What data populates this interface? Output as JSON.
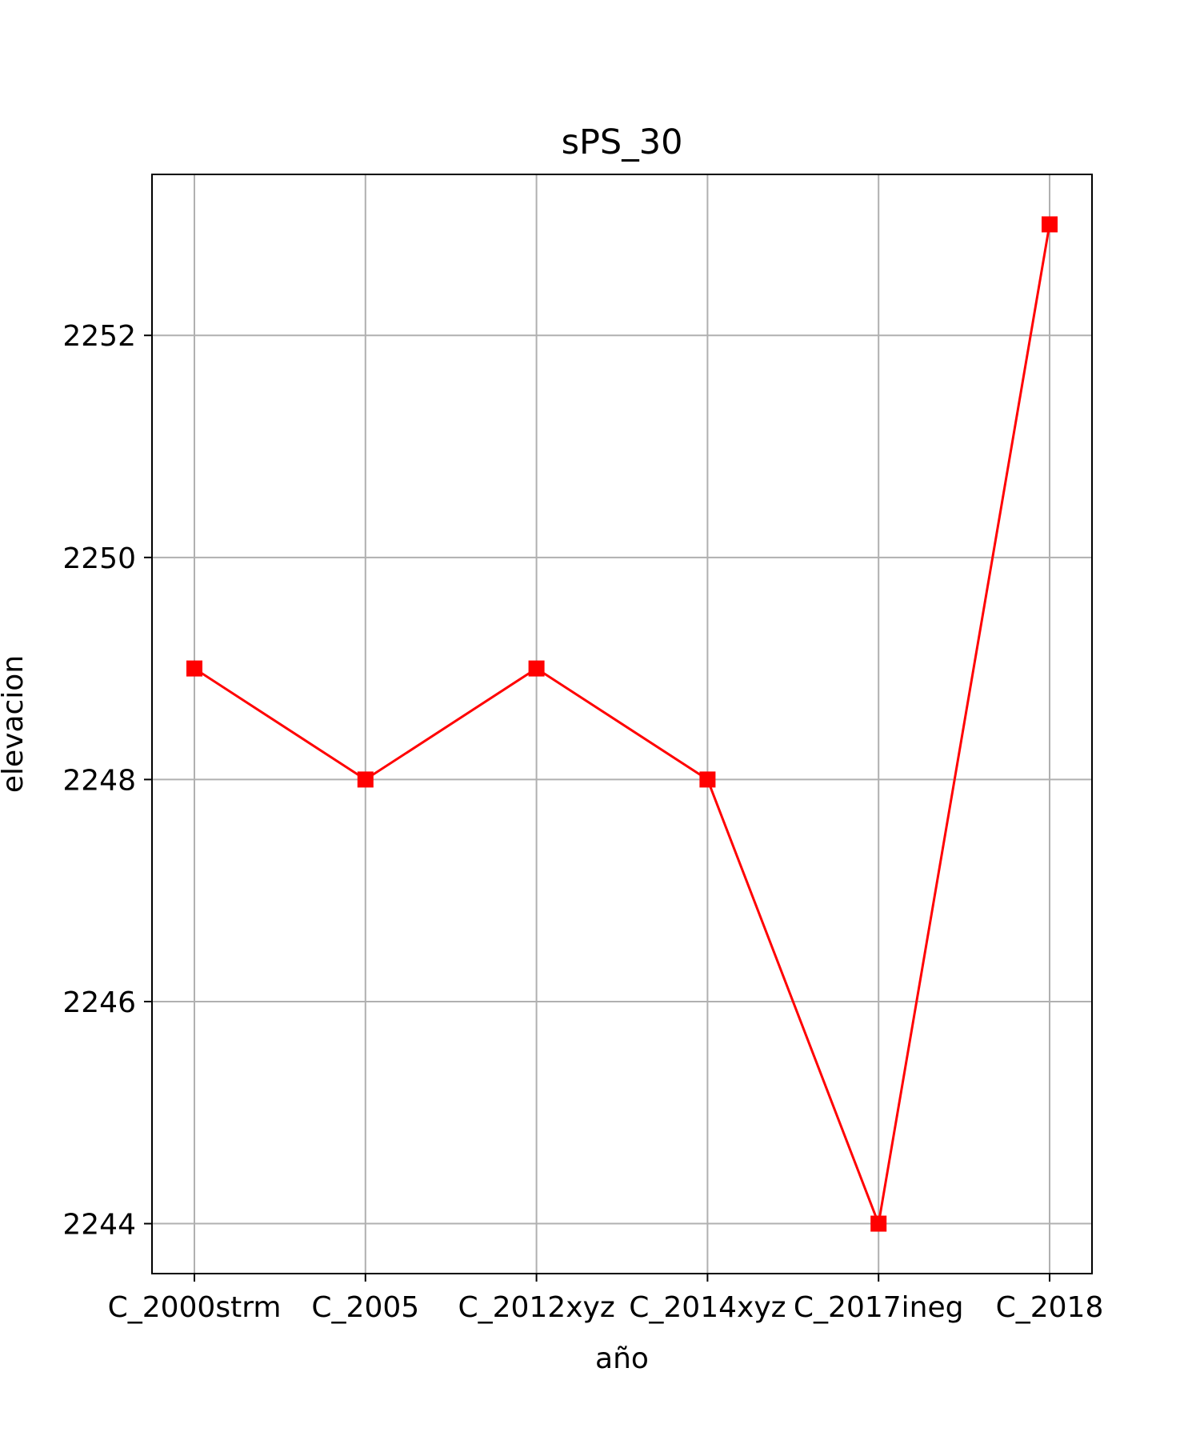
{
  "chart_data": {
    "type": "line",
    "title": "sPS_30",
    "xlabel": "año",
    "ylabel": "elevacion",
    "categories": [
      "C_2000strm",
      "C_2005",
      "C_2012xyz",
      "C_2014xyz",
      "C_2017ineg",
      "C_2018"
    ],
    "series": [
      {
        "name": "sPS_30",
        "values": [
          2249,
          2248,
          2249,
          2248,
          2244,
          2253
        ],
        "color": "#ff0000",
        "marker": "square"
      }
    ],
    "ylim": [
      2243.55,
      2253.45
    ],
    "yticks": [
      2244,
      2246,
      2248,
      2250,
      2252
    ],
    "ytick_labels": [
      "2244",
      "2246",
      "2248",
      "2250",
      "2252"
    ],
    "grid": true
  }
}
